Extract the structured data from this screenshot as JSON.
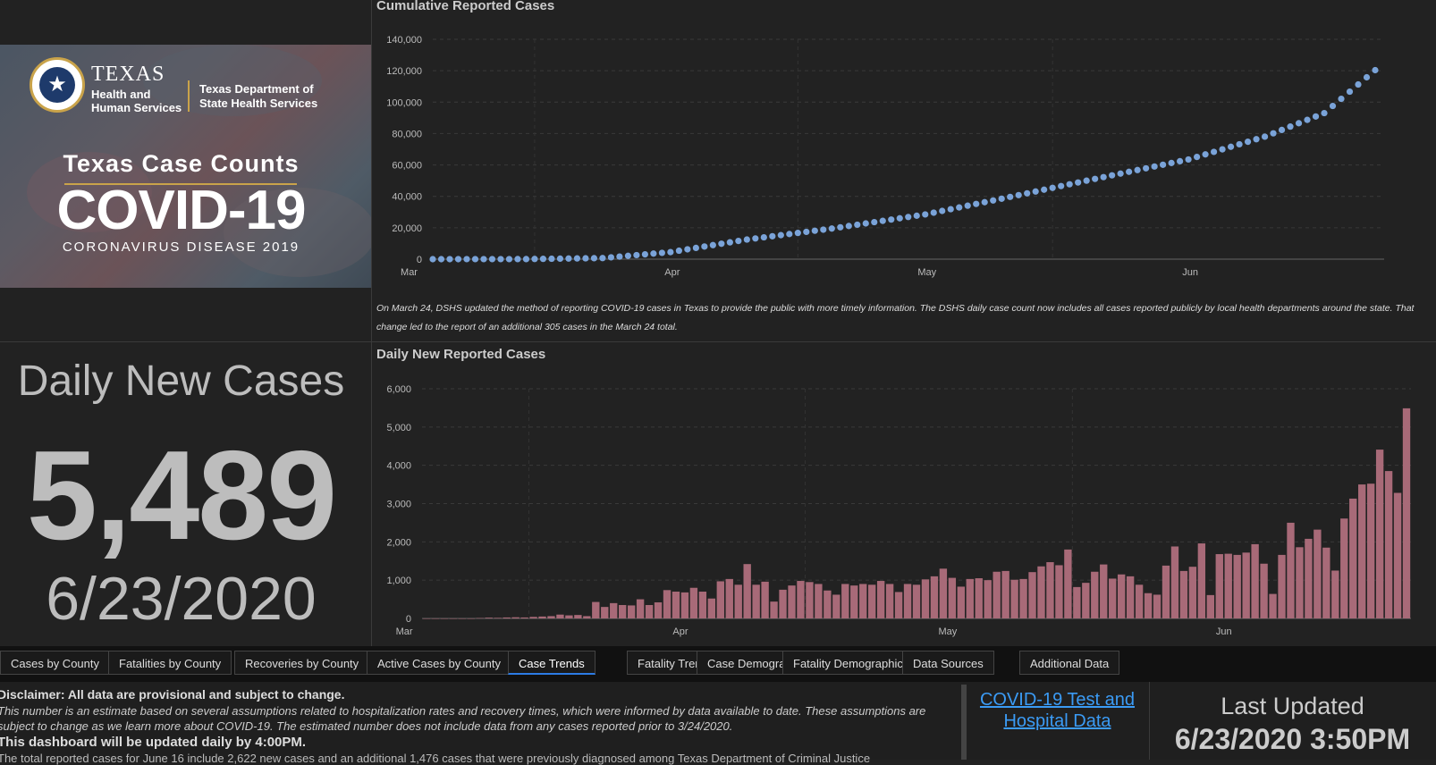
{
  "banner": {
    "org_name": "TEXAS",
    "org_sub": "Health and Human Services",
    "dept_name": "Texas Department of State Health Services",
    "subtitle": "Texas Case Counts",
    "title": "COVID-19",
    "tagline": "CORONAVIRUS DISEASE 2019"
  },
  "stat": {
    "label": "Daily New Cases",
    "value": "5,489",
    "date": "6/23/2020"
  },
  "cumulative_chart": {
    "title": "Cumulative Reported Cases",
    "note": "On March 24, DSHS updated the method of reporting COVID-19 cases in Texas to provide the public with more timely information. The DSHS daily case count now includes all cases reported publicly by local health departments around the state. That change led to the report of an additional 305 cases in the March 24 total.",
    "y_ticks": [
      "0",
      "20,000",
      "40,000",
      "60,000",
      "80,000",
      "100,000",
      "120,000",
      "140,000"
    ],
    "x_ticks": [
      "Mar",
      "Apr",
      "May",
      "Jun"
    ]
  },
  "daily_chart": {
    "title": "Daily New Reported Cases",
    "y_ticks": [
      "0",
      "1,000",
      "2,000",
      "3,000",
      "4,000",
      "5,000",
      "6,000"
    ],
    "x_ticks": [
      "Mar",
      "Apr",
      "May",
      "Jun"
    ]
  },
  "chart_data": [
    {
      "type": "scatter",
      "title": "Cumulative Reported Cases",
      "xlabel": "",
      "ylabel": "",
      "x_range": [
        "2020-03-04",
        "2020-06-23"
      ],
      "ylim": [
        0,
        140000
      ],
      "color": "#7aa3d8",
      "x": [
        "2020-03-04",
        "2020-03-15",
        "2020-03-24",
        "2020-04-01",
        "2020-04-10",
        "2020-04-20",
        "2020-05-01",
        "2020-05-10",
        "2020-05-20",
        "2020-06-01",
        "2020-06-10",
        "2020-06-17",
        "2020-06-23"
      ],
      "y": [
        1,
        60,
        700,
        4500,
        12500,
        19500,
        28500,
        38500,
        50000,
        63500,
        78000,
        93000,
        120370
      ]
    },
    {
      "type": "bar",
      "title": "Daily New Reported Cases",
      "xlabel": "",
      "ylabel": "",
      "ylim": [
        0,
        6000
      ],
      "color": "#a86a78",
      "x_range": [
        "2020-03-04",
        "2020-06-23"
      ],
      "values": [
        0,
        0,
        0,
        0,
        0,
        0,
        10,
        20,
        15,
        25,
        30,
        25,
        40,
        50,
        60,
        100,
        80,
        90,
        60,
        430,
        300,
        400,
        350,
        340,
        500,
        350,
        420,
        740,
        700,
        680,
        800,
        700,
        520,
        970,
        1030,
        880,
        1420,
        880,
        960,
        440,
        750,
        860,
        980,
        950,
        900,
        730,
        620,
        900,
        860,
        900,
        880,
        980,
        900,
        690,
        900,
        880,
        1020,
        1100,
        1300,
        1060,
        830,
        1030,
        1050,
        1000,
        1220,
        1240,
        1010,
        1030,
        1210,
        1360,
        1470,
        1390,
        1800,
        820,
        930,
        1220,
        1410,
        1040,
        1150,
        1100,
        880,
        660,
        620,
        1380,
        1880,
        1240,
        1350,
        1960,
        610,
        1680,
        1690,
        1660,
        1720,
        1940,
        1430,
        640,
        1660,
        2500,
        1860,
        2080,
        2320,
        1850,
        1250,
        2610,
        3130,
        3500,
        3520,
        4410,
        3850,
        3280,
        5489
      ]
    }
  ],
  "tabs": [
    {
      "label": "Cases by County"
    },
    {
      "label": "Fatalities by County"
    },
    {
      "label": "Recoveries by County"
    },
    {
      "label": "Active Cases by County"
    },
    {
      "label": "Case Trends"
    },
    {
      "label": "Fatality Trends"
    },
    {
      "label": "Case Demographics"
    },
    {
      "label": "Fatality Demographics"
    },
    {
      "label": "Data Sources"
    },
    {
      "label": "Additional Data"
    }
  ],
  "active_tab": "Case Trends",
  "footer": {
    "disclaimer_title": "Disclaimer: All data are provisional and subject to change.",
    "disclaimer_text": "This number is an estimate based on several assumptions related to hospitalization rates and recovery times, which were informed by data available to date. These assumptions are subject to change as we learn more about COVID-19. The estimated number does not include data from any cases reported prior to 3/24/2020.",
    "update_note": "This dashboard will be updated daily by 4:00PM.",
    "extra_note": "The total reported cases for June 16 include 2,622 new cases and an additional 1,476 cases that were previously diagnosed among Texas Department of Criminal Justice",
    "link_text": "COVID-19 Test and Hospital Data",
    "last_updated_label": "Last Updated",
    "last_updated_value": "6/23/2020 3:50PM"
  }
}
